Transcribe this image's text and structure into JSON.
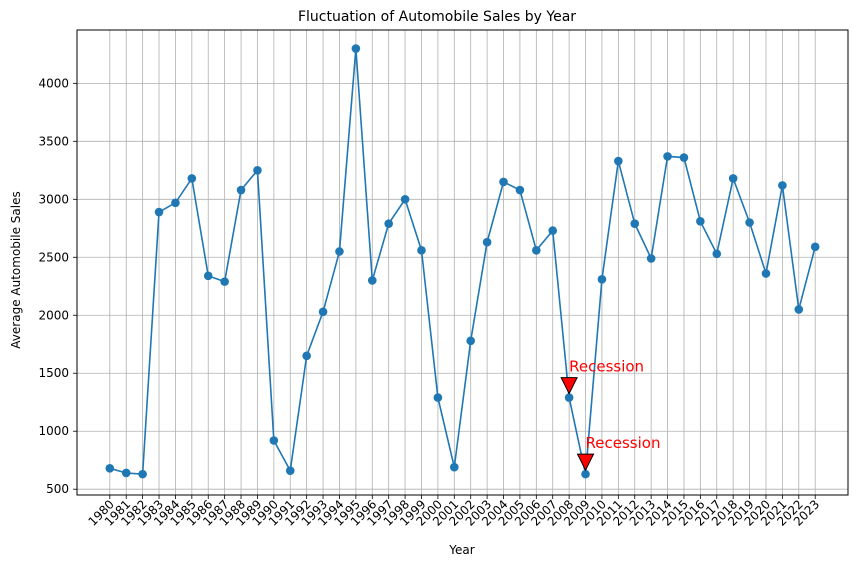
{
  "chart_data": {
    "type": "line",
    "title": "Fluctuation of Automobile Sales by Year",
    "xlabel": "Year",
    "ylabel": "Average Automobile Sales",
    "ylim": [
      450,
      4460
    ],
    "grid": true,
    "colors": {
      "line": "#1f77b4",
      "annotation": "#ff0000",
      "grid": "#b0b0b0"
    },
    "x": [
      1980,
      1981,
      1982,
      1983,
      1984,
      1985,
      1986,
      1987,
      1988,
      1989,
      1990,
      1991,
      1992,
      1993,
      1994,
      1995,
      1996,
      1997,
      1998,
      1999,
      2000,
      2001,
      2002,
      2003,
      2004,
      2005,
      2006,
      2007,
      2008,
      2009,
      2010,
      2011,
      2012,
      2013,
      2014,
      2015,
      2016,
      2017,
      2018,
      2019,
      2020,
      2021,
      2022,
      2023
    ],
    "x_tick_labels": [
      "1980",
      "1981",
      "1982",
      "1983",
      "1984",
      "1985",
      "1986",
      "1987",
      "1988",
      "1989",
      "1990",
      "1991",
      "1992",
      "1993",
      "1994",
      "1995",
      "1996",
      "1997",
      "1998",
      "1999",
      "2000",
      "2001",
      "2002",
      "2003",
      "2004",
      "2005",
      "2006",
      "2007",
      "2008",
      "2009",
      "2010",
      "2011",
      "2012",
      "2013",
      "2014",
      "2015",
      "2016",
      "2017",
      "2018",
      "2019",
      "2020",
      "2021",
      "2022",
      "2023"
    ],
    "y_ticks": [
      500,
      1000,
      1500,
      2000,
      2500,
      3000,
      3500,
      4000
    ],
    "y_tick_labels": [
      "500",
      "1000",
      "1500",
      "2000",
      "2500",
      "3000",
      "3500",
      "4000"
    ],
    "series": [
      {
        "values": [
          680,
          640,
          630,
          2890,
          2970,
          3180,
          2340,
          2290,
          3080,
          3250,
          920,
          660,
          1650,
          2030,
          2550,
          4300,
          2300,
          2790,
          3000,
          2560,
          1290,
          690,
          1780,
          2630,
          3150,
          3080,
          2560,
          2730,
          1290,
          630,
          2310,
          3330,
          2790,
          2490,
          3370,
          3360,
          2810,
          2530,
          3180,
          2800,
          2360,
          3120,
          2050,
          2590
        ]
      }
    ],
    "annotations": [
      {
        "text": "Recession",
        "x": 2008,
        "y": 1290
      },
      {
        "text": "Recession",
        "x": 2009,
        "y": 630
      }
    ]
  }
}
